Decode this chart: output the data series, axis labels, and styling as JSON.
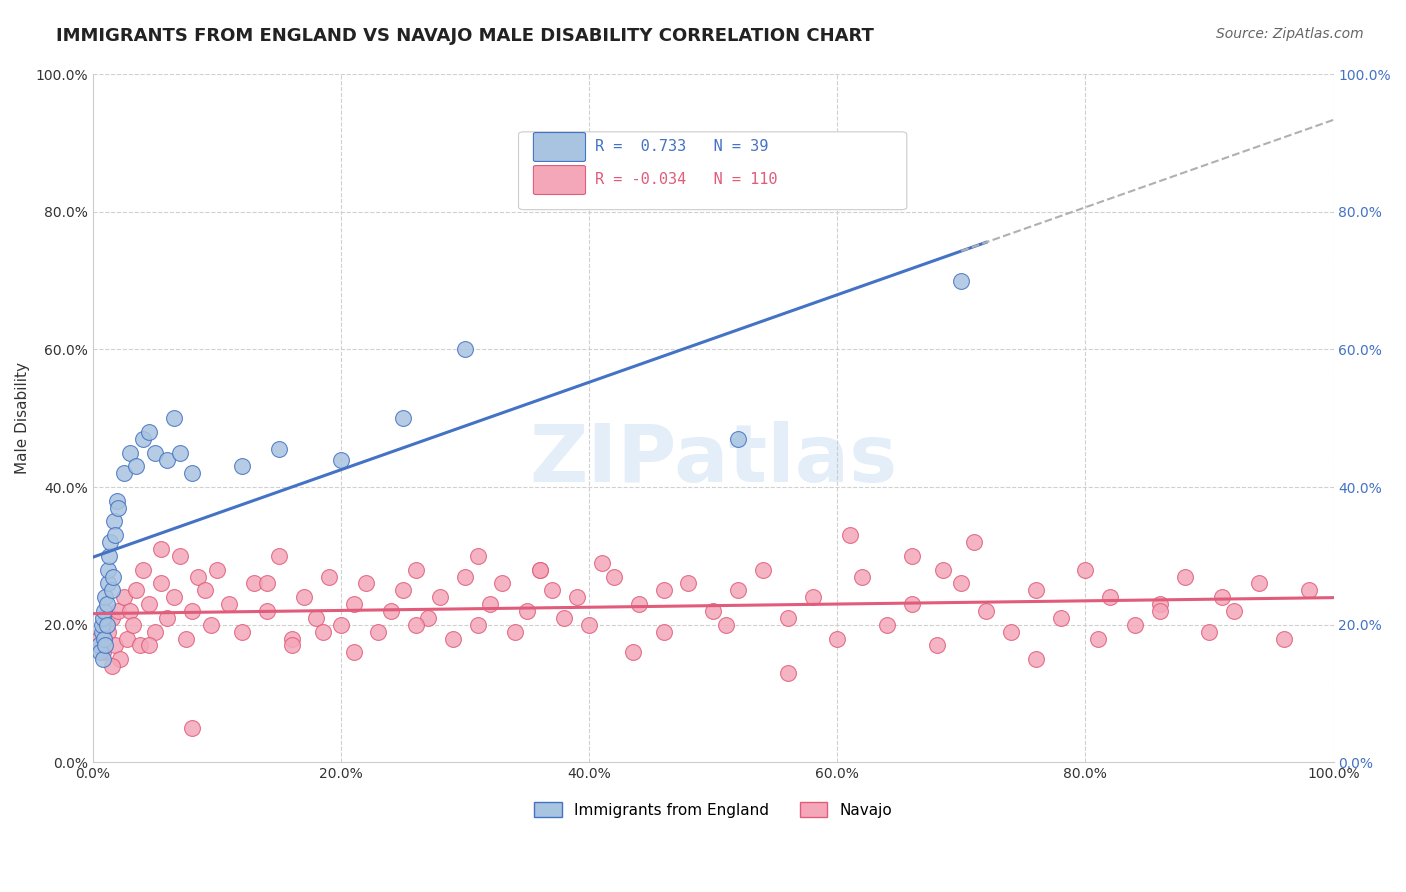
{
  "title": "IMMIGRANTS FROM ENGLAND VS NAVAJO MALE DISABILITY CORRELATION CHART",
  "source": "Source: ZipAtlas.com",
  "ylabel": "Male Disability",
  "x_tick_labels": [
    "0.0%",
    "20.0%",
    "40.0%",
    "60.0%",
    "80.0%",
    "100.0%"
  ],
  "y_tick_labels": [
    "0.0%",
    "20.0%",
    "40.0%",
    "60.0%",
    "80.0%",
    "100.0%"
  ],
  "legend_labels": [
    "Immigrants from England",
    "Navajo"
  ],
  "r_england": 0.733,
  "n_england": 39,
  "r_navajo": -0.034,
  "n_navajo": 110,
  "england_color": "#a8c4e0",
  "navajo_color": "#f4a7b9",
  "england_line_color": "#4472c4",
  "navajo_line_color": "#e05c7a",
  "trend_line_color": "#b0b0b0",
  "background_color": "#ffffff",
  "grid_color": "#d0d0d0",
  "title_fontsize": 13,
  "source_fontsize": 10,
  "label_fontsize": 11,
  "tick_fontsize": 10,
  "legend_fontsize": 11,
  "england_scatter_x": [
    0.005,
    0.006,
    0.007,
    0.007,
    0.008,
    0.008,
    0.009,
    0.009,
    0.01,
    0.01,
    0.011,
    0.011,
    0.012,
    0.012,
    0.013,
    0.014,
    0.015,
    0.016,
    0.017,
    0.018,
    0.019,
    0.02,
    0.025,
    0.03,
    0.035,
    0.04,
    0.045,
    0.05,
    0.06,
    0.065,
    0.07,
    0.08,
    0.12,
    0.15,
    0.2,
    0.25,
    0.3,
    0.52,
    0.7
  ],
  "england_scatter_y": [
    0.17,
    0.16,
    0.19,
    0.2,
    0.15,
    0.21,
    0.18,
    0.22,
    0.17,
    0.24,
    0.2,
    0.23,
    0.26,
    0.28,
    0.3,
    0.32,
    0.25,
    0.27,
    0.35,
    0.33,
    0.38,
    0.37,
    0.42,
    0.45,
    0.43,
    0.47,
    0.48,
    0.45,
    0.44,
    0.5,
    0.45,
    0.42,
    0.43,
    0.455,
    0.44,
    0.5,
    0.6,
    0.47,
    0.7
  ],
  "navajo_scatter_x": [
    0.005,
    0.008,
    0.01,
    0.012,
    0.015,
    0.018,
    0.02,
    0.022,
    0.025,
    0.027,
    0.03,
    0.032,
    0.035,
    0.038,
    0.04,
    0.045,
    0.05,
    0.055,
    0.06,
    0.065,
    0.07,
    0.075,
    0.08,
    0.085,
    0.09,
    0.095,
    0.1,
    0.11,
    0.12,
    0.13,
    0.14,
    0.15,
    0.16,
    0.17,
    0.18,
    0.19,
    0.2,
    0.21,
    0.22,
    0.23,
    0.24,
    0.25,
    0.26,
    0.27,
    0.28,
    0.29,
    0.3,
    0.31,
    0.32,
    0.33,
    0.34,
    0.35,
    0.36,
    0.37,
    0.38,
    0.39,
    0.4,
    0.42,
    0.44,
    0.46,
    0.48,
    0.5,
    0.52,
    0.54,
    0.56,
    0.58,
    0.6,
    0.62,
    0.64,
    0.66,
    0.68,
    0.7,
    0.72,
    0.74,
    0.76,
    0.78,
    0.8,
    0.82,
    0.84,
    0.86,
    0.88,
    0.9,
    0.92,
    0.94,
    0.96,
    0.98,
    0.015,
    0.045,
    0.08,
    0.14,
    0.21,
    0.31,
    0.41,
    0.51,
    0.61,
    0.71,
    0.81,
    0.91,
    0.36,
    0.66,
    0.16,
    0.46,
    0.76,
    0.26,
    0.56,
    0.86,
    0.055,
    0.185,
    0.435,
    0.685
  ],
  "navajo_scatter_y": [
    0.18,
    0.16,
    0.2,
    0.19,
    0.21,
    0.17,
    0.22,
    0.15,
    0.24,
    0.18,
    0.22,
    0.2,
    0.25,
    0.17,
    0.28,
    0.23,
    0.19,
    0.26,
    0.21,
    0.24,
    0.3,
    0.18,
    0.22,
    0.27,
    0.25,
    0.2,
    0.28,
    0.23,
    0.19,
    0.26,
    0.22,
    0.3,
    0.18,
    0.24,
    0.21,
    0.27,
    0.2,
    0.23,
    0.26,
    0.19,
    0.22,
    0.25,
    0.28,
    0.21,
    0.24,
    0.18,
    0.27,
    0.2,
    0.23,
    0.26,
    0.19,
    0.22,
    0.28,
    0.25,
    0.21,
    0.24,
    0.2,
    0.27,
    0.23,
    0.19,
    0.26,
    0.22,
    0.25,
    0.28,
    0.21,
    0.24,
    0.18,
    0.27,
    0.2,
    0.23,
    0.17,
    0.26,
    0.22,
    0.19,
    0.25,
    0.21,
    0.28,
    0.24,
    0.2,
    0.23,
    0.27,
    0.19,
    0.22,
    0.26,
    0.18,
    0.25,
    0.14,
    0.17,
    0.05,
    0.26,
    0.16,
    0.3,
    0.29,
    0.2,
    0.33,
    0.32,
    0.18,
    0.24,
    0.28,
    0.3,
    0.17,
    0.25,
    0.15,
    0.2,
    0.13,
    0.22,
    0.31,
    0.19,
    0.16,
    0.28
  ]
}
